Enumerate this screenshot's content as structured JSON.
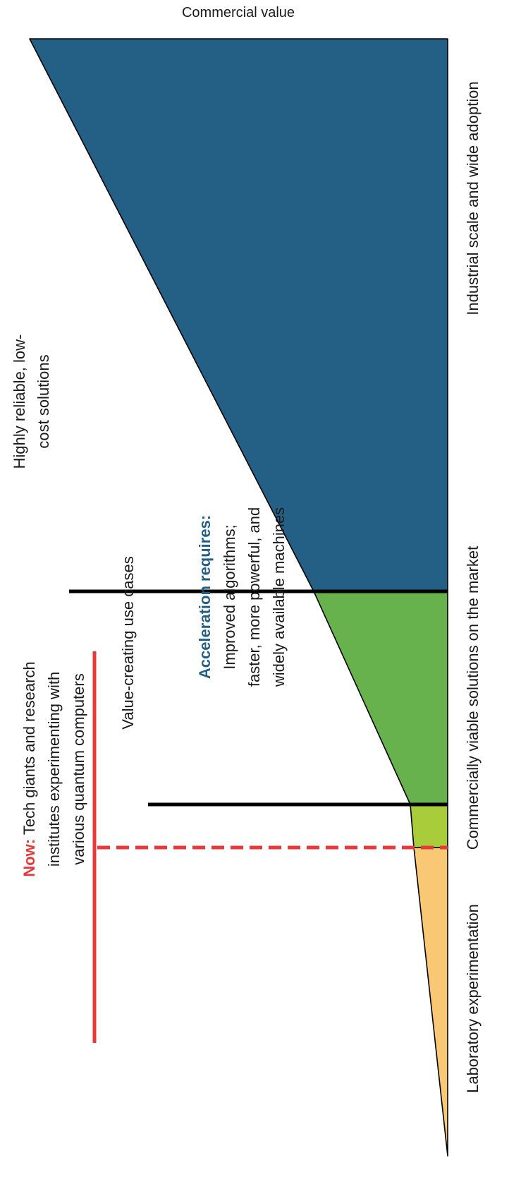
{
  "axis_title": "Commercial value",
  "stages": [
    {
      "label": "Laboratory experimentation",
      "color": "#F8C875"
    },
    {
      "label": "Commercially viable solutions on the market",
      "color": "#67B24C"
    },
    {
      "label": "Industrial scale and wide adoption",
      "color": "#245F86"
    }
  ],
  "early_use_case_color": "#A8CC3A",
  "milestones": {
    "value_creating": "Value-creating use cases",
    "reliable_line1": "Highly reliable, low-",
    "reliable_line2": "cost solutions"
  },
  "now_callout": {
    "prefix": "Now:",
    "line1_rest": " Tech giants and research",
    "line2": "institutes experimenting with",
    "line3": "various quantum computers",
    "color": "#E8393A"
  },
  "acceleration": {
    "heading": "Acceleration requires:",
    "line1": "Improved algorithms;",
    "line2": "faster, more powerful, and",
    "line3": "widely available machines",
    "heading_color": "#245F86"
  }
}
